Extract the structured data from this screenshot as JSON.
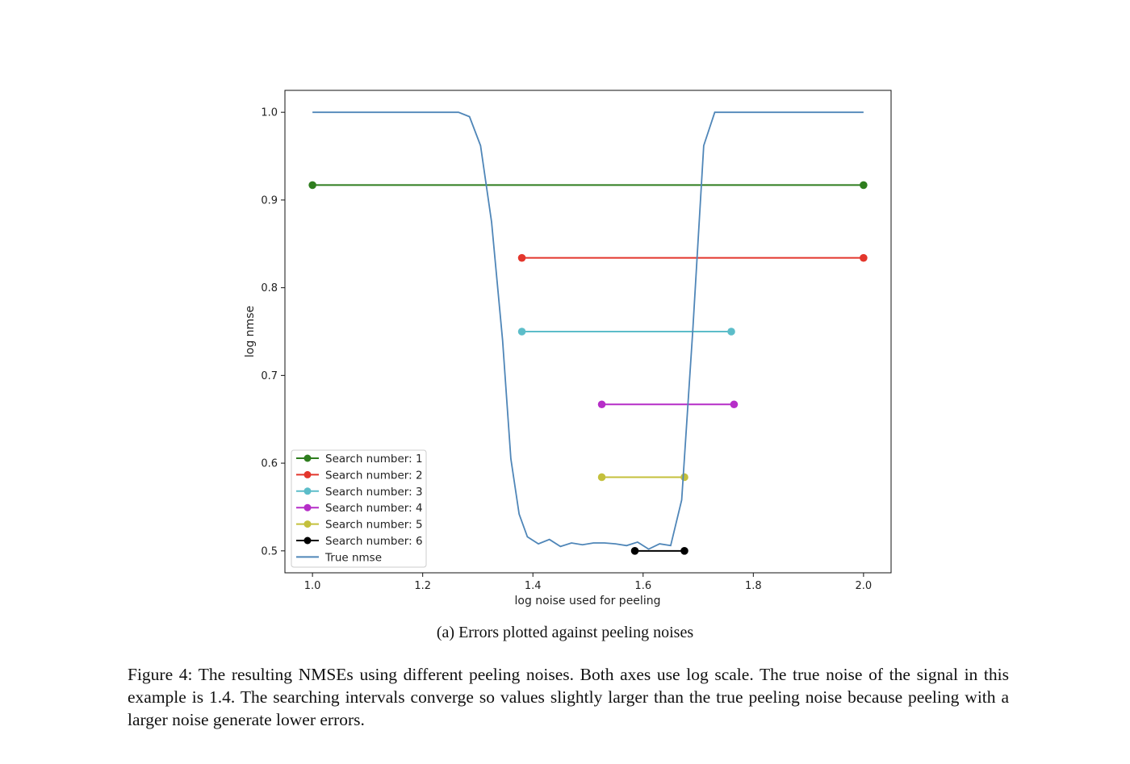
{
  "chart_data": {
    "type": "line",
    "xlabel": "log noise used for peeling",
    "ylabel": "log nmse",
    "xlim": [
      0.95,
      2.05
    ],
    "ylim": [
      0.475,
      1.025
    ],
    "x_ticks": [
      "1.0",
      "1.2",
      "1.4",
      "1.6",
      "1.8",
      "2.0"
    ],
    "y_ticks": [
      "0.5",
      "0.6",
      "0.7",
      "0.8",
      "0.9",
      "1.0"
    ],
    "grid": false,
    "legend_position": "lower-left",
    "series": [
      {
        "name": "Search number: 1",
        "color": "#2e7d1e",
        "marker": "circle",
        "x": [
          1.0,
          2.0
        ],
        "y": [
          0.917,
          0.917
        ]
      },
      {
        "name": "Search number: 2",
        "color": "#e3362c",
        "marker": "circle",
        "x": [
          1.38,
          2.0
        ],
        "y": [
          0.834,
          0.834
        ]
      },
      {
        "name": "Search number: 3",
        "color": "#5cbdc9",
        "marker": "circle",
        "x": [
          1.38,
          1.76
        ],
        "y": [
          0.75,
          0.75
        ]
      },
      {
        "name": "Search number: 4",
        "color": "#b62ec8",
        "marker": "circle",
        "x": [
          1.525,
          1.765
        ],
        "y": [
          0.667,
          0.667
        ]
      },
      {
        "name": "Search number: 5",
        "color": "#c4c03c",
        "marker": "circle",
        "x": [
          1.525,
          1.675
        ],
        "y": [
          0.584,
          0.584
        ]
      },
      {
        "name": "Search number: 6",
        "color": "#000000",
        "marker": "circle",
        "x": [
          1.585,
          1.675
        ],
        "y": [
          0.5,
          0.5
        ]
      },
      {
        "name": "True nmse",
        "color": "#4f86b8",
        "marker": "none",
        "x": [
          1.0,
          1.02,
          1.04,
          1.06,
          1.08,
          1.1,
          1.12,
          1.14,
          1.16,
          1.18,
          1.2,
          1.22,
          1.24,
          1.265,
          1.285,
          1.305,
          1.325,
          1.345,
          1.36,
          1.375,
          1.39,
          1.41,
          1.43,
          1.45,
          1.47,
          1.49,
          1.51,
          1.53,
          1.55,
          1.57,
          1.59,
          1.61,
          1.63,
          1.65,
          1.67,
          1.69,
          1.71,
          1.73,
          1.75,
          1.77,
          1.79,
          1.81,
          1.83,
          1.85,
          1.87,
          1.89,
          1.91,
          1.93,
          1.95,
          1.97,
          2.0
        ],
        "y": [
          1.0,
          1.0,
          1.0,
          1.0,
          1.0,
          1.0,
          1.0,
          1.0,
          1.0,
          1.0,
          1.0,
          1.0,
          1.0,
          1.0,
          0.995,
          0.962,
          0.875,
          0.74,
          0.605,
          0.542,
          0.516,
          0.508,
          0.513,
          0.505,
          0.509,
          0.507,
          0.509,
          0.509,
          0.508,
          0.506,
          0.51,
          0.502,
          0.508,
          0.506,
          0.558,
          0.75,
          0.962,
          1.0,
          1.0,
          1.0,
          1.0,
          1.0,
          1.0,
          1.0,
          1.0,
          1.0,
          1.0,
          1.0,
          1.0,
          1.0,
          1.0
        ]
      }
    ]
  },
  "subcaption": "(a) Errors plotted against peeling noises",
  "caption": "Figure 4: The resulting NMSEs using different peeling noises. Both axes use log scale. The true noise of the signal in this example is 1.4. The searching intervals converge so values slightly larger than the true peeling noise because peeling with a larger noise generate lower errors."
}
